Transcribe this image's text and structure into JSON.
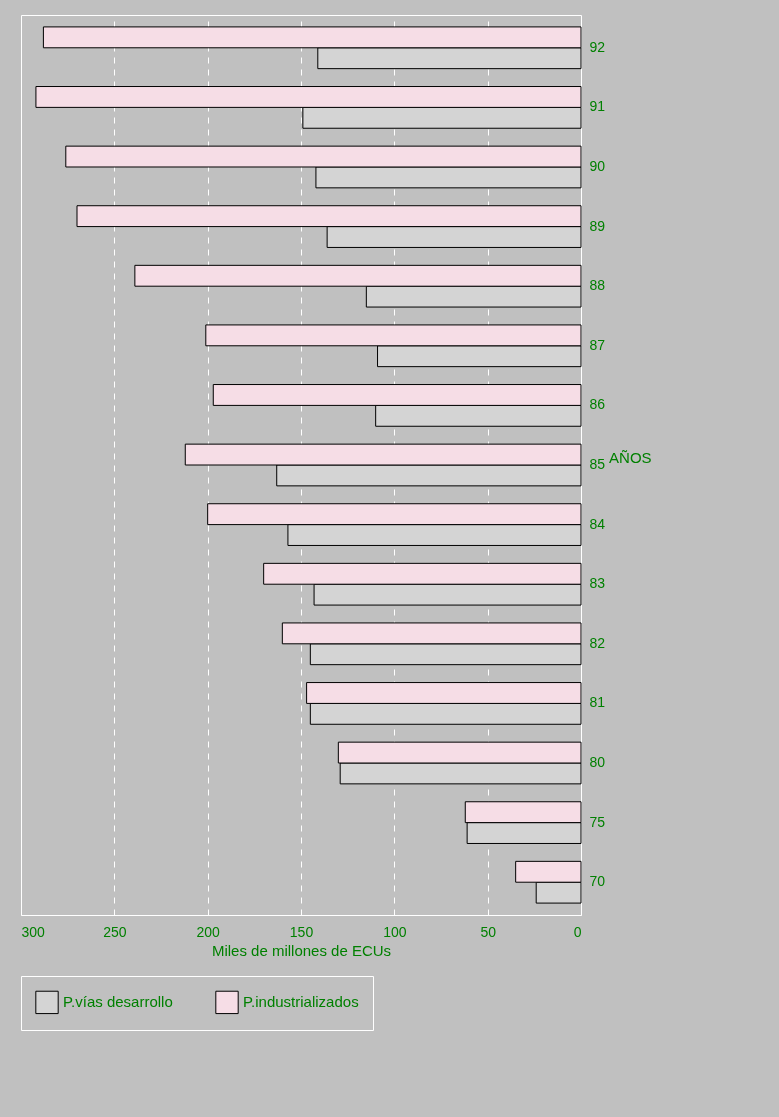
{
  "chart_data": {
    "type": "bar",
    "orientation": "horizontal",
    "xlabel": "Miles de millones de ECUs",
    "ylabel": "AÑOS",
    "categories": [
      "92",
      "91",
      "90",
      "89",
      "88",
      "87",
      "86",
      "85",
      "84",
      "83",
      "82",
      "81",
      "80",
      "75",
      "70"
    ],
    "series": [
      {
        "name": "P.vías desarrollo",
        "color": "#d4d4d4",
        "values": [
          141,
          149,
          142,
          136,
          115,
          109,
          110,
          163,
          157,
          143,
          145,
          145,
          129,
          61,
          24
        ]
      },
      {
        "name": "P.industrializados",
        "color": "#f6dde6",
        "values": [
          288,
          292,
          276,
          270,
          239,
          201,
          197,
          212,
          200,
          170,
          160,
          147,
          130,
          62,
          35
        ]
      }
    ],
    "xlim": [
      300,
      0
    ],
    "xticks": [
      300,
      250,
      200,
      150,
      100,
      50,
      0
    ],
    "grid": "x",
    "legend": "bottom"
  }
}
